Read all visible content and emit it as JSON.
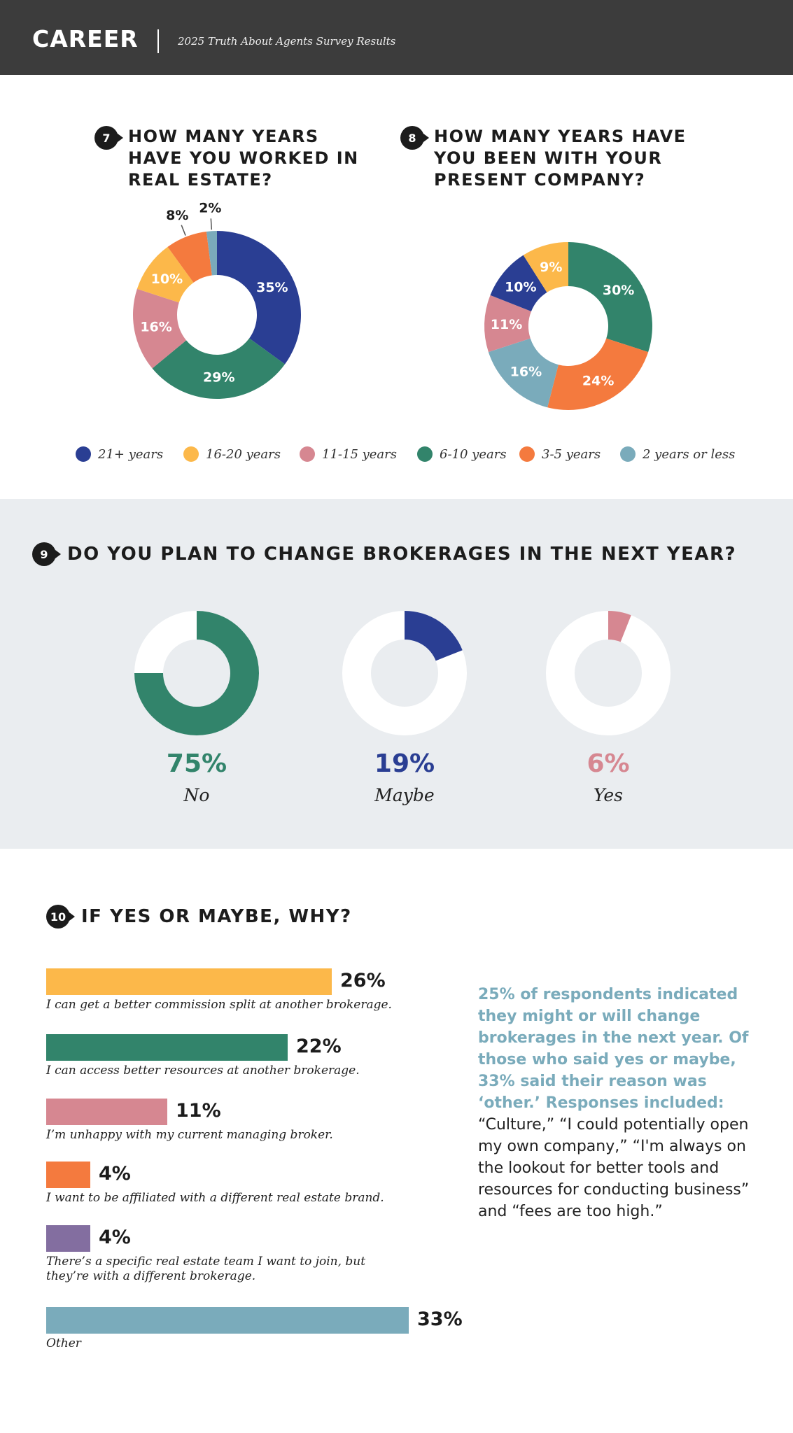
{
  "header": {
    "section": "CAREER",
    "subtitle": "2025 Truth About Agents Survey Results",
    "background": "#3c3c3c"
  },
  "legend": [
    {
      "label": "21+ years",
      "color": "#2a3e93"
    },
    {
      "label": "16-20 years",
      "color": "#fcb84a"
    },
    {
      "label": "11-15 years",
      "color": "#d68791"
    },
    {
      "label": "6-10 years",
      "color": "#32846b"
    },
    {
      "label": "3-5 years",
      "color": "#f47a3e"
    },
    {
      "label": "2 years or less",
      "color": "#7aabbb"
    }
  ],
  "chart_data": [
    {
      "type": "pie",
      "number": "7",
      "title": "HOW MANY YEARS HAVE YOU WORKED IN REAL ESTATE?",
      "slices": [
        {
          "label": "21+ years",
          "value": 35,
          "display": "35%",
          "color": "#2a3e93"
        },
        {
          "label": "6-10 years",
          "value": 29,
          "display": "29%",
          "color": "#32846b"
        },
        {
          "label": "11-15 years",
          "value": 16,
          "display": "16%",
          "color": "#d68791"
        },
        {
          "label": "16-20 years",
          "value": 10,
          "display": "10%",
          "color": "#fcb84a"
        },
        {
          "label": "3-5 years",
          "value": 8,
          "display": "8%",
          "color": "#f47a3e"
        },
        {
          "label": "2 years or less",
          "value": 2,
          "display": "2%",
          "color": "#7aabbb"
        }
      ]
    },
    {
      "type": "pie",
      "number": "8",
      "title": "HOW MANY YEARS HAVE YOU BEEN WITH YOUR PRESENT COMPANY?",
      "slices": [
        {
          "label": "6-10 years",
          "value": 30,
          "display": "30%",
          "color": "#32846b"
        },
        {
          "label": "3-5 years",
          "value": 24,
          "display": "24%",
          "color": "#f47a3e"
        },
        {
          "label": "2 years or less",
          "value": 16,
          "display": "16%",
          "color": "#7aabbb"
        },
        {
          "label": "11-15 years",
          "value": 11,
          "display": "11%",
          "color": "#d68791"
        },
        {
          "label": "21+ years",
          "value": 10,
          "display": "10%",
          "color": "#2a3e93"
        },
        {
          "label": "16-20 years",
          "value": 9,
          "display": "9%",
          "color": "#fcb84a"
        }
      ]
    },
    {
      "type": "pie",
      "number": "9",
      "title": "DO YOU PLAN TO CHANGE BROKERAGES IN THE NEXT YEAR?",
      "slices": [
        {
          "label": "No",
          "value": 75,
          "display": "75%",
          "color": "#32846b"
        },
        {
          "label": "Maybe",
          "value": 19,
          "display": "19%",
          "color": "#2a3e93"
        },
        {
          "label": "Yes",
          "value": 6,
          "display": "6%",
          "color": "#d68791"
        }
      ]
    },
    {
      "type": "bar",
      "number": "10",
      "title": "IF YES OR MAYBE, WHY?",
      "xlim": [
        0,
        33
      ],
      "bars": [
        {
          "label": "I can get a better commission split at another brokerage.",
          "value": 26,
          "display": "26%",
          "color": "#fcb84a"
        },
        {
          "label": "I can access better resources at another brokerage.",
          "value": 22,
          "display": "22%",
          "color": "#32846b"
        },
        {
          "label": "I’m unhappy with my current managing broker.",
          "value": 11,
          "display": "11%",
          "color": "#d68791"
        },
        {
          "label": "I want to be affiliated with a different real estate brand.",
          "value": 4,
          "display": "4%",
          "color": "#f47a3e"
        },
        {
          "label": "There’s a specific real estate team I want to join, but they’re with a different brokerage.",
          "value": 4,
          "display": "4%",
          "color": "#836ea0"
        },
        {
          "label": "Other",
          "value": 33,
          "display": "33%",
          "color": "#7aabbb"
        }
      ]
    }
  ],
  "callout": {
    "lead": "25% of respondents indicated they might or will change brokerages in the next year. Of those who said yes or maybe, 33% said their reason was ‘other.’ Responses included:",
    "quote": "“Culture,” “I could potentially open my own company,” “I'm always on the lookout for better tools and resources for conducting business” and “fees are too high.”",
    "color": "#7aabbb"
  }
}
